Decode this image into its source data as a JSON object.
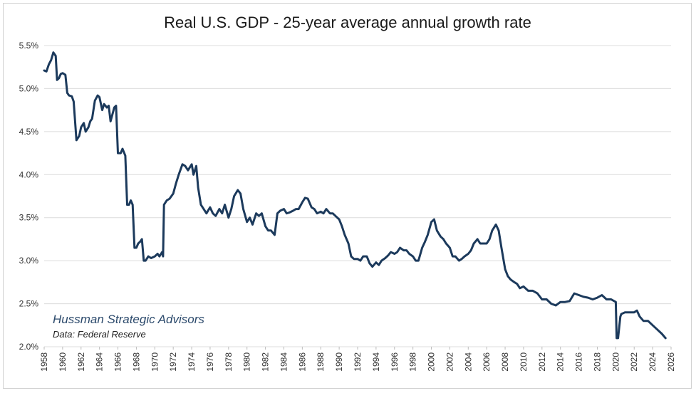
{
  "chart_data": {
    "type": "line",
    "title": "Real U.S. GDP - 25-year average annual growth rate",
    "xlabel": "",
    "ylabel": "",
    "xlim": [
      1958,
      2026
    ],
    "ylim": [
      2.0,
      5.5
    ],
    "y_ticks": [
      "2.0%",
      "2.5%",
      "3.0%",
      "3.5%",
      "4.0%",
      "4.5%",
      "5.0%",
      "5.5%"
    ],
    "y_tick_values": [
      2.0,
      2.5,
      3.0,
      3.5,
      4.0,
      4.5,
      5.0,
      5.5
    ],
    "x_ticks": [
      "1958",
      "1960",
      "1962",
      "1964",
      "1966",
      "1968",
      "1970",
      "1972",
      "1974",
      "1976",
      "1978",
      "1980",
      "1982",
      "1984",
      "1986",
      "1988",
      "1990",
      "1992",
      "1994",
      "1996",
      "1998",
      "2000",
      "2002",
      "2004",
      "2006",
      "2008",
      "2010",
      "2012",
      "2014",
      "2016",
      "2018",
      "2020",
      "2022",
      "2024",
      "2026"
    ],
    "x_tick_values": [
      1958,
      1960,
      1962,
      1964,
      1966,
      1968,
      1970,
      1972,
      1974,
      1976,
      1978,
      1980,
      1982,
      1984,
      1986,
      1988,
      1990,
      1992,
      1994,
      1996,
      1998,
      2000,
      2002,
      2004,
      2006,
      2008,
      2010,
      2012,
      2014,
      2016,
      2018,
      2020,
      2022,
      2024,
      2026
    ],
    "grid": true,
    "color": "#1c3a5c",
    "series": [
      {
        "name": "",
        "x": [
          1958.0,
          1958.25,
          1958.5,
          1958.75,
          1959.0,
          1959.25,
          1959.4,
          1959.6,
          1959.8,
          1960.0,
          1960.3,
          1960.5,
          1960.7,
          1961.0,
          1961.2,
          1961.5,
          1961.8,
          1962.0,
          1962.3,
          1962.5,
          1962.8,
          1963.0,
          1963.2,
          1963.5,
          1963.8,
          1964.0,
          1964.3,
          1964.5,
          1964.8,
          1965.0,
          1965.2,
          1965.4,
          1965.6,
          1965.8,
          1966.0,
          1966.3,
          1966.5,
          1966.8,
          1967.0,
          1967.2,
          1967.4,
          1967.6,
          1967.8,
          1968.0,
          1968.2,
          1968.4,
          1968.6,
          1968.8,
          1969.0,
          1969.3,
          1969.6,
          1970.0,
          1970.3,
          1970.5,
          1970.8,
          1970.9,
          1971.0,
          1971.3,
          1971.6,
          1972.0,
          1972.3,
          1972.6,
          1973.0,
          1973.3,
          1973.6,
          1974.0,
          1974.2,
          1974.5,
          1974.7,
          1975.0,
          1975.3,
          1975.6,
          1976.0,
          1976.3,
          1976.6,
          1977.0,
          1977.3,
          1977.6,
          1978.0,
          1978.3,
          1978.6,
          1979.0,
          1979.3,
          1979.6,
          1980.0,
          1980.3,
          1980.6,
          1981.0,
          1981.3,
          1981.6,
          1982.0,
          1982.3,
          1982.6,
          1983.0,
          1983.3,
          1983.6,
          1984.0,
          1984.3,
          1984.6,
          1985.0,
          1985.3,
          1985.6,
          1986.0,
          1986.3,
          1986.6,
          1987.0,
          1987.3,
          1987.6,
          1988.0,
          1988.3,
          1988.6,
          1989.0,
          1989.3,
          1989.6,
          1990.0,
          1990.3,
          1990.6,
          1991.0,
          1991.3,
          1991.6,
          1992.0,
          1992.3,
          1992.6,
          1993.0,
          1993.3,
          1993.6,
          1994.0,
          1994.3,
          1994.6,
          1995.0,
          1995.3,
          1995.6,
          1996.0,
          1996.3,
          1996.6,
          1997.0,
          1997.3,
          1997.6,
          1998.0,
          1998.3,
          1998.6,
          1999.0,
          1999.3,
          1999.6,
          2000.0,
          2000.3,
          2000.6,
          2001.0,
          2001.3,
          2001.6,
          2002.0,
          2002.3,
          2002.6,
          2003.0,
          2003.3,
          2003.6,
          2004.0,
          2004.3,
          2004.6,
          2005.0,
          2005.3,
          2005.6,
          2006.0,
          2006.3,
          2006.6,
          2007.0,
          2007.3,
          2007.6,
          2008.0,
          2008.3,
          2008.6,
          2009.0,
          2009.3,
          2009.6,
          2010.0,
          2010.5,
          2011.0,
          2011.5,
          2012.0,
          2012.5,
          2013.0,
          2013.5,
          2014.0,
          2014.5,
          2015.0,
          2015.5,
          2016.0,
          2016.5,
          2017.0,
          2017.5,
          2018.0,
          2018.5,
          2019.0,
          2019.5,
          2020.0,
          2020.1,
          2020.25,
          2020.5,
          2020.6,
          2021.0,
          2021.5,
          2022.0,
          2022.3,
          2022.6,
          2023.0,
          2023.5,
          2024.0,
          2024.5,
          2025.0,
          2025.4
        ],
        "values": [
          5.21,
          5.2,
          5.28,
          5.33,
          5.42,
          5.38,
          5.1,
          5.12,
          5.17,
          5.18,
          5.16,
          4.95,
          4.92,
          4.91,
          4.85,
          4.4,
          4.45,
          4.55,
          4.6,
          4.5,
          4.55,
          4.62,
          4.65,
          4.86,
          4.92,
          4.9,
          4.75,
          4.82,
          4.78,
          4.8,
          4.62,
          4.7,
          4.78,
          4.8,
          4.25,
          4.25,
          4.3,
          4.22,
          3.65,
          3.65,
          3.7,
          3.65,
          3.15,
          3.15,
          3.2,
          3.22,
          3.25,
          3.0,
          3.0,
          3.05,
          3.03,
          3.05,
          3.08,
          3.05,
          3.1,
          3.05,
          3.65,
          3.7,
          3.72,
          3.78,
          3.9,
          4.0,
          4.12,
          4.1,
          4.05,
          4.12,
          4.0,
          4.1,
          3.85,
          3.65,
          3.6,
          3.55,
          3.62,
          3.55,
          3.52,
          3.6,
          3.55,
          3.65,
          3.5,
          3.6,
          3.75,
          3.82,
          3.78,
          3.6,
          3.45,
          3.5,
          3.42,
          3.55,
          3.52,
          3.55,
          3.4,
          3.35,
          3.35,
          3.3,
          3.55,
          3.58,
          3.6,
          3.55,
          3.56,
          3.58,
          3.6,
          3.6,
          3.68,
          3.73,
          3.72,
          3.62,
          3.6,
          3.55,
          3.57,
          3.55,
          3.6,
          3.55,
          3.55,
          3.52,
          3.48,
          3.4,
          3.3,
          3.2,
          3.05,
          3.02,
          3.02,
          3.0,
          3.05,
          3.05,
          2.97,
          2.93,
          2.98,
          2.95,
          3.0,
          3.03,
          3.06,
          3.1,
          3.08,
          3.1,
          3.15,
          3.12,
          3.12,
          3.08,
          3.05,
          3.0,
          3.0,
          3.15,
          3.22,
          3.3,
          3.45,
          3.48,
          3.35,
          3.28,
          3.25,
          3.2,
          3.15,
          3.05,
          3.05,
          3.0,
          3.02,
          3.05,
          3.08,
          3.12,
          3.2,
          3.25,
          3.2,
          3.2,
          3.2,
          3.25,
          3.35,
          3.42,
          3.35,
          3.15,
          2.9,
          2.82,
          2.78,
          2.75,
          2.73,
          2.68,
          2.7,
          2.65,
          2.65,
          2.62,
          2.55,
          2.55,
          2.5,
          2.48,
          2.52,
          2.52,
          2.53,
          2.62,
          2.6,
          2.58,
          2.57,
          2.55,
          2.57,
          2.6,
          2.55,
          2.55,
          2.52,
          2.1,
          2.1,
          2.35,
          2.38,
          2.4,
          2.4,
          2.4,
          2.42,
          2.35,
          2.3,
          2.3,
          2.25,
          2.2,
          2.15,
          2.1
        ]
      }
    ]
  },
  "annotation": {
    "line1": "Hussman Strategic Advisors",
    "line2": "Data: Federal Reserve",
    "line1_color": "#2c4a6c"
  }
}
